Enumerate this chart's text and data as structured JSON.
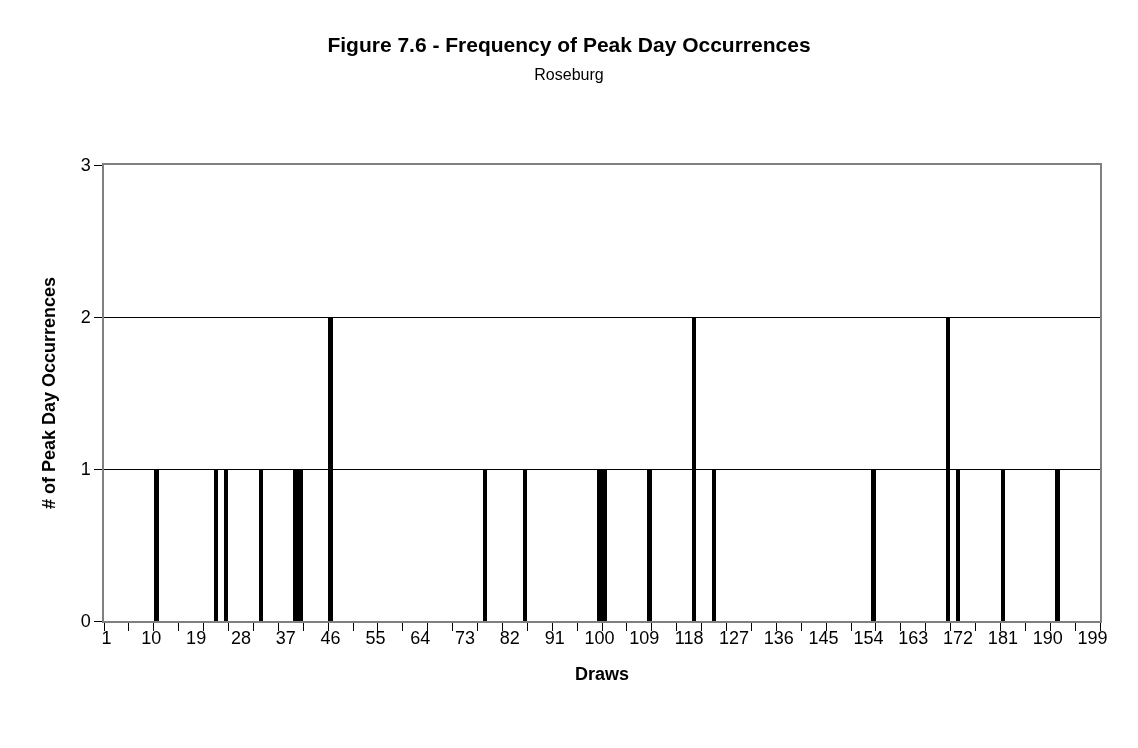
{
  "chart_data": {
    "type": "bar",
    "title": "Figure 7.6 - Frequency of Peak Day Occurrences",
    "subtitle": "Roseburg",
    "xlabel": "Draws",
    "ylabel": "# of Peak Day Occurrences",
    "x": [
      11,
      23,
      25,
      32,
      39,
      40,
      46,
      77,
      85,
      100,
      101,
      110,
      119,
      123,
      155,
      170,
      172,
      181,
      192
    ],
    "values": [
      1,
      1,
      1,
      1,
      1,
      1,
      2,
      1,
      1,
      1,
      1,
      1,
      2,
      1,
      1,
      2,
      1,
      1,
      1
    ],
    "color": "#000000",
    "xlim": [
      0.5,
      200.5
    ],
    "xticks": [
      1,
      10,
      19,
      28,
      37,
      46,
      55,
      64,
      73,
      82,
      91,
      100,
      109,
      118,
      127,
      136,
      145,
      154,
      163,
      172,
      181,
      190,
      199,
      {
        "value": 0.5,
        "label": null
      },
      {
        "value": 5.5,
        "label": null
      },
      {
        "value": 10.5,
        "label": null
      },
      {
        "value": 15.5,
        "label": null
      },
      {
        "value": 20.5,
        "label": null
      },
      {
        "value": 25.5,
        "label": null
      },
      {
        "value": 30.5,
        "label": null
      },
      {
        "value": 35.5,
        "label": null
      },
      {
        "value": 40.5,
        "label": null
      },
      {
        "value": 45.5,
        "label": null
      },
      {
        "value": 50.5,
        "label": null
      },
      {
        "value": 55.5,
        "label": null
      },
      {
        "value": 60.5,
        "label": null
      },
      {
        "value": 65.5,
        "label": null
      },
      {
        "value": 70.5,
        "label": null
      },
      {
        "value": 75.5,
        "label": null
      },
      {
        "value": 80.5,
        "label": null
      },
      {
        "value": 85.5,
        "label": null
      },
      {
        "value": 90.5,
        "label": null
      },
      {
        "value": 95.5,
        "label": null
      },
      {
        "value": 100.5,
        "label": null
      },
      {
        "value": 105.5,
        "label": null
      },
      {
        "value": 110.5,
        "label": null
      },
      {
        "value": 115.5,
        "label": null
      },
      {
        "value": 120.5,
        "label": null
      },
      {
        "value": 125.5,
        "label": null
      },
      {
        "value": 130.5,
        "label": null
      },
      {
        "value": 135.5,
        "label": null
      },
      {
        "value": 140.5,
        "label": null
      },
      {
        "value": 145.5,
        "label": null
      },
      {
        "value": 150.5,
        "label": null
      },
      {
        "value": 155.5,
        "label": null
      },
      {
        "value": 160.5,
        "label": null
      },
      {
        "value": 165.5,
        "label": null
      },
      {
        "value": 170.5,
        "label": null
      },
      {
        "value": 175.5,
        "label": null
      },
      {
        "value": 180.5,
        "label": null
      },
      {
        "value": 185.5,
        "label": null
      },
      {
        "value": 190.5,
        "label": null
      },
      {
        "value": 195.5,
        "label": null
      },
      {
        "value": 200.5,
        "label": null
      }
    ],
    "ylim": [
      0,
      3
    ],
    "yticks": [
      0,
      1,
      2,
      3
    ],
    "grid": "y"
  }
}
